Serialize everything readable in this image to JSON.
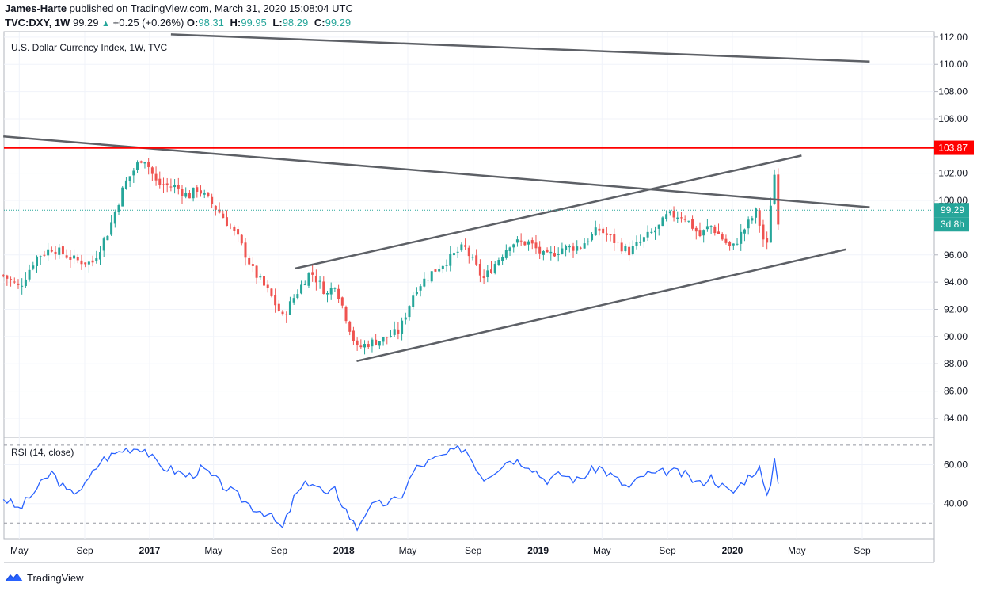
{
  "header": {
    "author": "James-Harte",
    "published_text": "published on TradingView.com, March 31, 2020 15:08:04 UTC",
    "symbol": "TVC:DXY, 1W",
    "last": "99.29",
    "change": "+0.25 (+0.26%)",
    "open_label": "O:",
    "open": "98.31",
    "high_label": "H:",
    "high": "99.95",
    "low_label": "L:",
    "low": "98.29",
    "close_label": "C:",
    "close": "99.29"
  },
  "footer": {
    "brand": "TradingView",
    "logo_icon": "tradingview-logo-icon"
  },
  "colors": {
    "up": "#26a69a",
    "down": "#ef5350",
    "resistance": "#ff0000",
    "trendline": "#5d6066",
    "rsi": "#2962ff",
    "price_badge": "#26a69a"
  },
  "chart_data": [
    {
      "type": "candlestick",
      "title": "U.S. Dollar Currency Index, 1W, TVC",
      "y_ticks": [
        "112.00",
        "110.00",
        "108.00",
        "106.00",
        "102.00",
        "100.00",
        "96.00",
        "94.00",
        "92.00",
        "90.00",
        "88.00",
        "86.00",
        "84.00"
      ],
      "ylim": [
        82.6,
        112.4
      ],
      "x_ticks": [
        "May",
        "Sep",
        "2017",
        "May",
        "Sep",
        "2018",
        "May",
        "Sep",
        "2019",
        "May",
        "Sep",
        "2020",
        "May",
        "Sep"
      ],
      "x_tick_dates": [
        "2016-05-01",
        "2016-09-01",
        "2017-01-01",
        "2017-05-01",
        "2017-09-01",
        "2018-01-01",
        "2018-05-01",
        "2018-09-01",
        "2019-01-01",
        "2019-05-01",
        "2019-09-01",
        "2020-01-01",
        "2020-05-01",
        "2020-09-01"
      ],
      "close_anchors": [
        [
          "2016-04-01",
          94.5
        ],
        [
          "2016-05-01",
          93.6
        ],
        [
          "2016-06-01",
          95.8
        ],
        [
          "2016-07-01",
          96.5
        ],
        [
          "2016-08-15",
          95.6
        ],
        [
          "2016-09-15",
          95.4
        ],
        [
          "2016-10-15",
          97.7
        ],
        [
          "2016-11-15",
          101.2
        ],
        [
          "2016-12-20",
          103.3
        ],
        [
          "2017-01-15",
          101.2
        ],
        [
          "2017-02-20",
          101.0
        ],
        [
          "2017-03-15",
          100.3
        ],
        [
          "2017-04-01",
          100.9
        ],
        [
          "2017-05-15",
          99.0
        ],
        [
          "2017-06-15",
          97.3
        ],
        [
          "2017-07-15",
          94.8
        ],
        [
          "2017-08-15",
          93.1
        ],
        [
          "2017-09-08",
          91.4
        ],
        [
          "2017-10-01",
          93.0
        ],
        [
          "2017-10-30",
          94.8
        ],
        [
          "2017-12-01",
          93.1
        ],
        [
          "2017-12-15",
          93.9
        ],
        [
          "2018-01-25",
          89.1
        ],
        [
          "2018-02-15",
          89.5
        ],
        [
          "2018-03-15",
          89.8
        ],
        [
          "2018-04-15",
          90.4
        ],
        [
          "2018-05-15",
          93.5
        ],
        [
          "2018-06-15",
          94.7
        ],
        [
          "2018-08-15",
          96.6
        ],
        [
          "2018-09-20",
          94.2
        ],
        [
          "2018-11-10",
          96.9
        ],
        [
          "2018-12-15",
          96.9
        ],
        [
          "2019-01-15",
          95.8
        ],
        [
          "2019-02-15",
          96.5
        ],
        [
          "2019-03-20",
          96.6
        ],
        [
          "2019-04-25",
          97.9
        ],
        [
          "2019-06-20",
          96.2
        ],
        [
          "2019-07-20",
          97.2
        ],
        [
          "2019-08-15",
          98.0
        ],
        [
          "2019-09-01",
          98.9
        ],
        [
          "2019-10-01",
          98.9
        ],
        [
          "2019-11-01",
          97.4
        ],
        [
          "2019-11-20",
          98.2
        ],
        [
          "2019-12-31",
          96.4
        ],
        [
          "2020-01-15",
          97.4
        ],
        [
          "2020-02-15",
          99.2
        ],
        [
          "2020-03-05",
          96.2
        ],
        [
          "2020-03-19",
          102.5
        ],
        [
          "2020-03-26",
          98.4
        ],
        [
          "2020-03-31",
          99.29
        ]
      ],
      "annotations": {
        "resistance_level": 103.87,
        "resistance_label": "103.87",
        "last_price_label": "99.29",
        "countdown_label": "3d 8h"
      },
      "trendlines": [
        {
          "from": [
            "2017-02-10",
            112.2
          ],
          "to": [
            "2020-09-15",
            110.2
          ]
        },
        {
          "from": [
            "2016-04-01",
            104.7
          ],
          "to": [
            "2020-09-15",
            99.5
          ]
        },
        {
          "from": [
            "2017-10-01",
            95.0
          ],
          "to": [
            "2020-05-10",
            103.3
          ]
        },
        {
          "from": [
            "2018-01-25",
            88.2
          ],
          "to": [
            "2020-08-01",
            96.4
          ]
        }
      ]
    },
    {
      "type": "line",
      "title": "RSI (14, close)",
      "y_ticks": [
        "60.00",
        "40.00"
      ],
      "ylim": [
        22,
        74
      ],
      "guide_levels": [
        70,
        30
      ],
      "rsi_anchors": [
        [
          "2016-04-01",
          43
        ],
        [
          "2016-05-01",
          37
        ],
        [
          "2016-06-01",
          47
        ],
        [
          "2016-07-01",
          56
        ],
        [
          "2016-08-01",
          45
        ],
        [
          "2016-09-01",
          49
        ],
        [
          "2016-10-01",
          62
        ],
        [
          "2016-11-15",
          68
        ],
        [
          "2016-12-20",
          69
        ],
        [
          "2017-01-15",
          60
        ],
        [
          "2017-02-15",
          57
        ],
        [
          "2017-03-15",
          54
        ],
        [
          "2017-04-10",
          58
        ],
        [
          "2017-05-15",
          50
        ],
        [
          "2017-06-20",
          43
        ],
        [
          "2017-07-15",
          38
        ],
        [
          "2017-08-10",
          35
        ],
        [
          "2017-09-08",
          27
        ],
        [
          "2017-10-01",
          44
        ],
        [
          "2017-10-30",
          52
        ],
        [
          "2017-12-01",
          44
        ],
        [
          "2017-12-15",
          47
        ],
        [
          "2018-01-25",
          27
        ],
        [
          "2018-02-15",
          38
        ],
        [
          "2018-03-15",
          40
        ],
        [
          "2018-04-15",
          42
        ],
        [
          "2018-05-15",
          58
        ],
        [
          "2018-06-15",
          62
        ],
        [
          "2018-08-15",
          69
        ],
        [
          "2018-09-20",
          53
        ],
        [
          "2018-11-10",
          63
        ],
        [
          "2018-12-15",
          60
        ],
        [
          "2019-01-15",
          52
        ],
        [
          "2019-02-15",
          55
        ],
        [
          "2019-03-15",
          52
        ],
        [
          "2019-04-25",
          59
        ],
        [
          "2019-06-20",
          48
        ],
        [
          "2019-07-20",
          55
        ],
        [
          "2019-08-15",
          55
        ],
        [
          "2019-09-01",
          57
        ],
        [
          "2019-10-01",
          55
        ],
        [
          "2019-11-01",
          50
        ],
        [
          "2019-11-20",
          54
        ],
        [
          "2019-12-31",
          45
        ],
        [
          "2020-01-20",
          51
        ],
        [
          "2020-02-20",
          59
        ],
        [
          "2020-03-08",
          40
        ],
        [
          "2020-03-19",
          65
        ],
        [
          "2020-03-26",
          52
        ],
        [
          "2020-03-31",
          54
        ]
      ]
    }
  ]
}
